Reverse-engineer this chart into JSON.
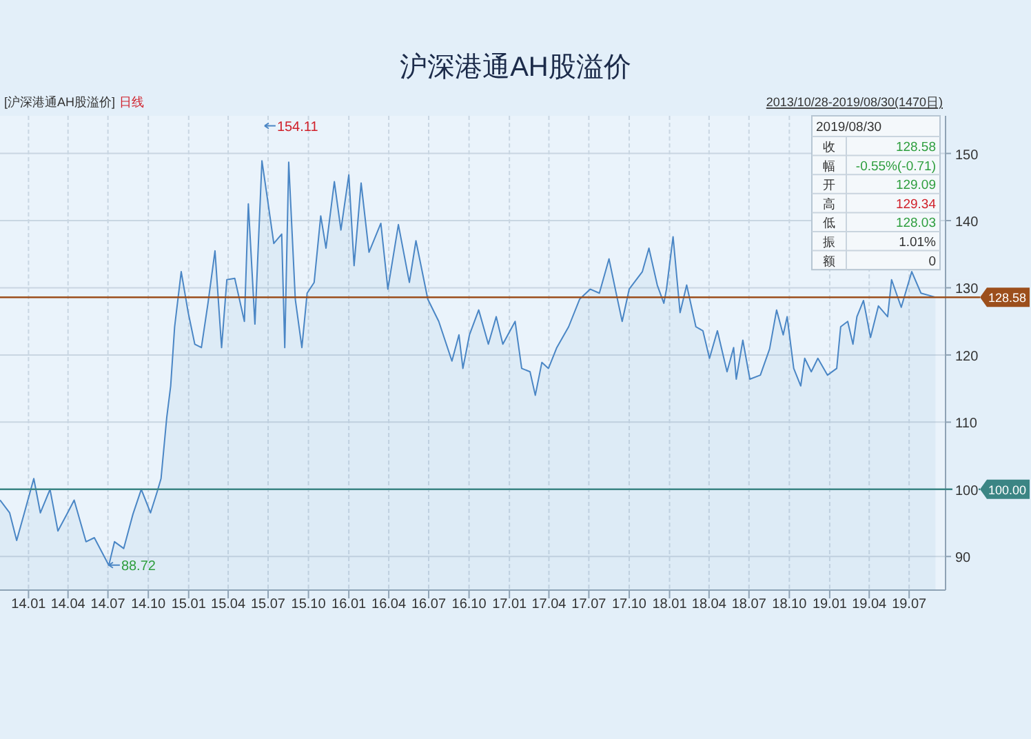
{
  "chart_data": {
    "type": "area",
    "title": "沪深港通AH股溢价",
    "x": [
      "2013-10-28",
      "2013-11-19",
      "2013-12-05",
      "2013-12-20",
      "2014-01-13",
      "2014-01-28",
      "2014-02-19",
      "2014-03-09",
      "2014-03-31",
      "2014-04-15",
      "2014-05-12",
      "2014-05-31",
      "2014-07-03",
      "2014-07-16",
      "2014-08-06",
      "2014-08-27",
      "2014-09-15",
      "2014-10-06",
      "2014-10-21",
      "2014-10-30",
      "2014-11-12",
      "2014-11-21",
      "2014-11-30",
      "2014-12-15",
      "2014-12-31",
      "2015-01-15",
      "2015-01-30",
      "2015-02-14",
      "2015-03-02",
      "2015-03-17",
      "2015-03-29",
      "2015-04-16",
      "2015-05-08",
      "2015-05-17",
      "2015-06-01",
      "2015-06-17",
      "2015-06-29",
      "2015-07-14",
      "2015-08-01",
      "2015-08-08",
      "2015-08-17",
      "2015-09-01",
      "2015-09-16",
      "2015-09-28",
      "2015-10-14",
      "2015-10-29",
      "2015-11-10",
      "2015-11-29",
      "2015-12-14",
      "2016-01-01",
      "2016-01-13",
      "2016-01-29",
      "2016-02-16",
      "2016-03-14",
      "2016-03-30",
      "2016-04-23",
      "2016-05-18",
      "2016-06-02",
      "2016-06-29",
      "2016-07-24",
      "2016-08-23",
      "2016-09-08",
      "2016-09-17",
      "2016-10-02",
      "2016-10-23",
      "2016-11-14",
      "2016-12-02",
      "2016-12-17",
      "2017-01-14",
      "2017-01-29",
      "2017-02-17",
      "2017-03-01",
      "2017-03-16",
      "2017-03-31",
      "2017-04-19",
      "2017-05-16",
      "2017-06-10",
      "2017-07-04",
      "2017-07-25",
      "2017-08-16",
      "2017-08-31",
      "2017-09-15",
      "2017-10-01",
      "2017-10-31",
      "2017-11-15",
      "2017-12-04",
      "2017-12-19",
      "2017-12-25",
      "2018-01-09",
      "2018-01-25",
      "2018-02-09",
      "2018-03-02",
      "2018-03-18",
      "2018-04-02",
      "2018-04-20",
      "2018-05-12",
      "2018-05-27",
      "2018-06-02",
      "2018-06-17",
      "2018-07-03",
      "2018-07-27",
      "2018-08-17",
      "2018-09-02",
      "2018-09-17",
      "2018-09-26",
      "2018-10-11",
      "2018-10-27",
      "2018-11-05",
      "2018-11-20",
      "2018-12-05",
      "2018-12-27",
      "2019-01-17",
      "2019-01-26",
      "2019-02-11",
      "2019-02-23",
      "2019-03-04",
      "2019-03-19",
      "2019-04-04",
      "2019-04-22",
      "2019-05-13",
      "2019-05-22",
      "2019-06-13",
      "2019-07-07",
      "2019-07-28",
      "2019-08-30"
    ],
    "series": [
      {
        "color": "#4a86c5",
        "values": [
          98.4,
          96.5,
          92.4,
          95.9,
          101.6,
          96.5,
          100.0,
          93.8,
          96.5,
          98.4,
          92.2,
          92.8,
          88.7,
          92.2,
          91.2,
          96.3,
          100.0,
          96.5,
          99.6,
          101.6,
          110.7,
          115.4,
          124.2,
          132.4,
          126.3,
          121.6,
          121.1,
          127.7,
          135.5,
          121.1,
          131.2,
          131.4,
          125.0,
          142.5,
          124.6,
          148.9,
          143.5,
          136.6,
          138.0,
          121.1,
          148.7,
          128.3,
          121.1,
          129.2,
          130.8,
          140.7,
          135.9,
          145.8,
          138.6,
          146.8,
          133.3,
          145.6,
          135.3,
          139.6,
          129.8,
          139.4,
          130.8,
          137.0,
          128.3,
          125.0,
          119.1,
          123.0,
          118.0,
          123.0,
          126.7,
          121.6,
          125.7,
          121.6,
          125.0,
          118.0,
          117.5,
          114.0,
          118.9,
          118.0,
          121.1,
          124.2,
          128.3,
          129.8,
          129.2,
          134.3,
          129.6,
          125.0,
          129.8,
          132.4,
          135.9,
          130.4,
          127.7,
          129.8,
          137.6,
          126.3,
          130.4,
          124.2,
          123.6,
          119.5,
          123.6,
          117.5,
          121.1,
          116.4,
          122.2,
          116.4,
          117.0,
          120.9,
          126.7,
          123.0,
          125.7,
          118.0,
          115.4,
          119.5,
          117.5,
          119.5,
          117.0,
          118.0,
          124.2,
          125.0,
          121.6,
          125.7,
          128.1,
          122.6,
          127.3,
          125.7,
          131.2,
          127.1,
          132.4,
          129.2,
          128.6
        ]
      }
    ],
    "xlim": [
      "2013-10-28",
      "2019-09-22"
    ],
    "xticks": [
      {
        "value": "2014-01-01",
        "label": "14.01"
      },
      {
        "value": "2014-04-01",
        "label": "14.04"
      },
      {
        "value": "2014-07-01",
        "label": "14.07"
      },
      {
        "value": "2014-10-01",
        "label": "14.10"
      },
      {
        "value": "2015-01-01",
        "label": "15.01"
      },
      {
        "value": "2015-04-01",
        "label": "15.04"
      },
      {
        "value": "2015-07-01",
        "label": "15.07"
      },
      {
        "value": "2015-10-01",
        "label": "15.10"
      },
      {
        "value": "2016-01-01",
        "label": "16.01"
      },
      {
        "value": "2016-04-01",
        "label": "16.04"
      },
      {
        "value": "2016-07-01",
        "label": "16.07"
      },
      {
        "value": "2016-10-01",
        "label": "16.10"
      },
      {
        "value": "2017-01-01",
        "label": "17.01"
      },
      {
        "value": "2017-04-01",
        "label": "17.04"
      },
      {
        "value": "2017-07-01",
        "label": "17.07"
      },
      {
        "value": "2017-10-01",
        "label": "17.10"
      },
      {
        "value": "2018-01-01",
        "label": "18.01"
      },
      {
        "value": "2018-04-01",
        "label": "18.04"
      },
      {
        "value": "2018-07-01",
        "label": "18.07"
      },
      {
        "value": "2018-10-01",
        "label": "18.10"
      },
      {
        "value": "2019-01-01",
        "label": "19.01"
      },
      {
        "value": "2019-04-01",
        "label": "19.04"
      },
      {
        "value": "2019-07-01",
        "label": "19.07"
      }
    ],
    "ylim": [
      85,
      155.6
    ],
    "yticks": [
      90,
      100,
      110,
      120,
      130,
      140,
      150
    ],
    "grid": true,
    "ref_lines": [
      {
        "axis": "y",
        "value": 128.58,
        "label": "128.58",
        "color": "#9c4f1c"
      },
      {
        "axis": "y",
        "value": 100,
        "label": "100.00",
        "color": "#3b8584"
      }
    ],
    "annotations": [
      "[沪深港通AH股溢价]",
      "日线",
      "2013/10/28-2019/08/30(1470日)",
      "2019/08/30",
      "收",
      "128.58",
      "幅",
      "-0.55%(-0.71)",
      "开",
      "129.09",
      "高",
      "129.34",
      "低",
      "128.03",
      "振",
      "1.01%",
      "额",
      "0",
      {
        "text": "154.11",
        "x": "2015-06-23",
        "y": 154.11
      },
      {
        "text": "88.72",
        "x": "2014-07-03",
        "y": 88.72
      }
    ]
  }
}
